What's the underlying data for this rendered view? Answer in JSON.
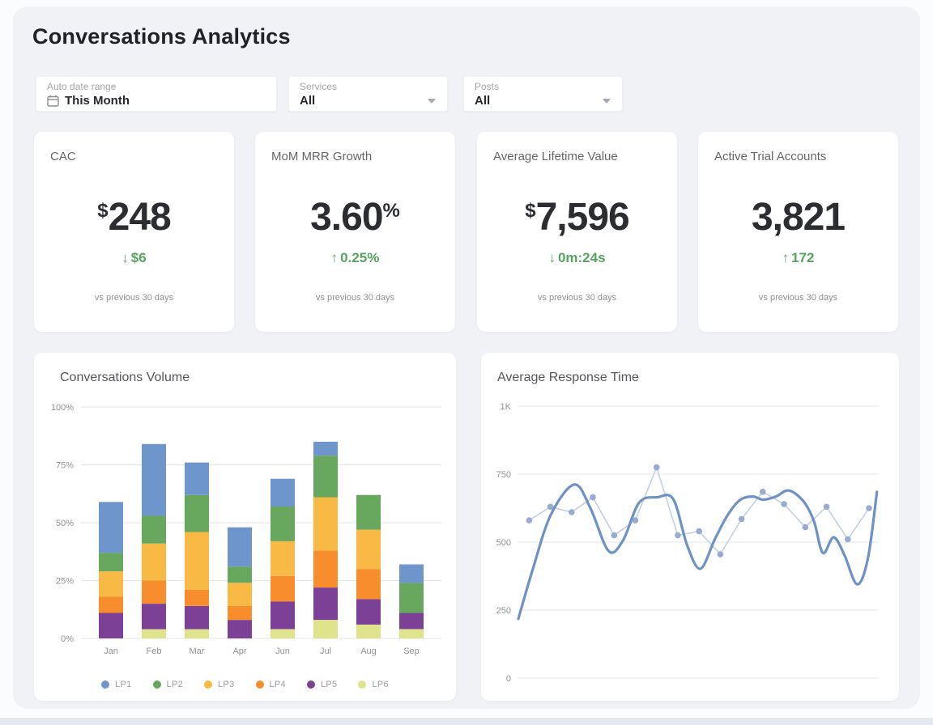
{
  "page": {
    "title": "Conversations Analytics"
  },
  "filters": {
    "date": {
      "label": "Auto date range",
      "value": "This Month"
    },
    "services": {
      "label": "Services",
      "value": "All"
    },
    "posts": {
      "label": "Posts",
      "value": "All"
    }
  },
  "kpis": [
    {
      "title": "CAC",
      "prefix": "$",
      "value": "248",
      "suffix": "",
      "delta_arrow": "↓",
      "delta": "$6",
      "footnote": "vs previous 30 days"
    },
    {
      "title": "MoM MRR Growth",
      "prefix": "",
      "value": "3.60",
      "suffix": "%",
      "delta_arrow": "↑",
      "delta": "0.25%",
      "footnote": "vs previous 30 days"
    },
    {
      "title": "Average Lifetime Value",
      "prefix": "$",
      "value": "7,596",
      "suffix": "",
      "delta_arrow": "↓",
      "delta": "0m:24s",
      "footnote": "vs previous 30 days"
    },
    {
      "title": "Active Trial Accounts",
      "prefix": "",
      "value": "3,821",
      "suffix": "",
      "delta_arrow": "↑",
      "delta": "172",
      "footnote": "vs previous 30 days"
    }
  ],
  "colors": {
    "panel_bg": "#f0f2f6",
    "card_bg": "#ffffff",
    "accent_green": "#56a55e",
    "grid": "#e4e6ea",
    "axis_label": "#8f9298"
  },
  "chart_data": [
    {
      "type": "bar",
      "stacked": true,
      "title": "Conversations Volume",
      "categories": [
        "Jan",
        "Feb",
        "Mar",
        "Apr",
        "Jun",
        "Jul",
        "Aug",
        "Sep"
      ],
      "y_tick_labels": [
        "0%",
        "25%",
        "50%",
        "75%",
        "100%"
      ],
      "y_tick_values": [
        0,
        25,
        50,
        75,
        100
      ],
      "ylim": [
        0,
        100
      ],
      "grid": true,
      "legend_position": "bottom",
      "series": [
        {
          "name": "LP1",
          "color": "#6e96cd",
          "values": [
            22,
            31,
            14,
            17,
            12,
            6,
            0,
            8
          ]
        },
        {
          "name": "LP2",
          "color": "#67a75e",
          "values": [
            8,
            12,
            16,
            7,
            15,
            18,
            15,
            13
          ]
        },
        {
          "name": "LP3",
          "color": "#f8ba45",
          "values": [
            11,
            16,
            25,
            10,
            15,
            23,
            17,
            0
          ]
        },
        {
          "name": "LP4",
          "color": "#f78d2c",
          "values": [
            7,
            10,
            7,
            6,
            11,
            16,
            13,
            0
          ]
        },
        {
          "name": "LP5",
          "color": "#7d4097",
          "values": [
            11,
            11,
            10,
            8,
            12,
            14,
            11,
            7
          ]
        },
        {
          "name": "LP6",
          "color": "#dfe48c",
          "values": [
            0,
            4,
            4,
            0,
            4,
            8,
            6,
            4
          ]
        }
      ],
      "stack_order_bottom_to_top": [
        "LP6",
        "LP5",
        "LP4",
        "LP3",
        "LP2",
        "LP1"
      ]
    },
    {
      "type": "line",
      "title": "Average Response Time",
      "y_tick_labels": [
        "0",
        "250",
        "500",
        "750",
        "1K"
      ],
      "y_tick_values": [
        0,
        250,
        500,
        750,
        1000
      ],
      "ylim": [
        0,
        1000
      ],
      "grid": true,
      "series": [
        {
          "name": "response-time-actual",
          "style": "markers",
          "color": "#c4cfe4",
          "marker_color": "#97abd3",
          "values": [
            580,
            630,
            610,
            665,
            525,
            580,
            775,
            525,
            540,
            455,
            585,
            685,
            640,
            555,
            630,
            510,
            625
          ]
        },
        {
          "name": "response-time-trend",
          "style": "smooth",
          "color": "#6d92c6",
          "points": [
            [
              0.0,
              218
            ],
            [
              0.04,
              400
            ],
            [
              0.09,
              600
            ],
            [
              0.155,
              712
            ],
            [
              0.2,
              625
            ],
            [
              0.25,
              468
            ],
            [
              0.29,
              505
            ],
            [
              0.335,
              645
            ],
            [
              0.385,
              665
            ],
            [
              0.43,
              658
            ],
            [
              0.468,
              490
            ],
            [
              0.505,
              402
            ],
            [
              0.545,
              510
            ],
            [
              0.58,
              598
            ],
            [
              0.615,
              655
            ],
            [
              0.65,
              668
            ],
            [
              0.68,
              656
            ],
            [
              0.715,
              668
            ],
            [
              0.75,
              690
            ],
            [
              0.79,
              652
            ],
            [
              0.82,
              578
            ],
            [
              0.845,
              460
            ],
            [
              0.875,
              518
            ],
            [
              0.905,
              452
            ],
            [
              0.94,
              345
            ],
            [
              0.97,
              440
            ],
            [
              0.995,
              685
            ]
          ]
        }
      ]
    }
  ]
}
